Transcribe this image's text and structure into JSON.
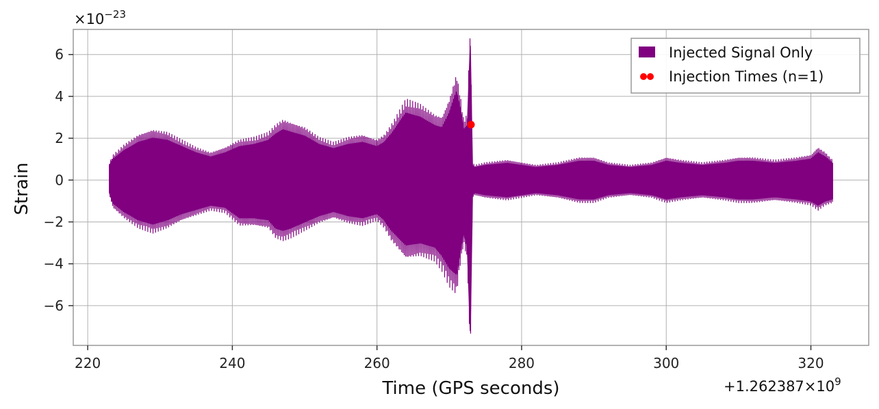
{
  "chart_data": {
    "type": "line",
    "title": "",
    "xlabel": "Time (GPS seconds)",
    "ylabel": "Strain",
    "xlim": [
      218,
      328
    ],
    "ylim": [
      -7.9,
      7.2
    ],
    "x_ticks": [
      220,
      240,
      260,
      280,
      300,
      320
    ],
    "x_tick_labels": [
      "220",
      "240",
      "260",
      "280",
      "300",
      "320"
    ],
    "y_ticks": [
      -6,
      -4,
      -2,
      0,
      2,
      4,
      6
    ],
    "y_tick_labels": [
      "−6",
      "−4",
      "−2",
      "0",
      "2",
      "4",
      "6"
    ],
    "x_offset_label": "+1.262387×10",
    "x_offset_exponent": "9",
    "y_scale_label": "×10",
    "y_scale_exponent": "−23",
    "grid": true,
    "legend_position": "top-right",
    "series": [
      {
        "name": "Injected Signal Only",
        "color": "#800080",
        "style": "oscillating strain envelope",
        "envelope": {
          "x": [
            223,
            223.5,
            225,
            227,
            229,
            231,
            233,
            235,
            237,
            239,
            241,
            243,
            245,
            246,
            247,
            248,
            250,
            252,
            254,
            256,
            258,
            260,
            261,
            262,
            264,
            266,
            268,
            269,
            270,
            271,
            271.5,
            272,
            272.5,
            272.9,
            273.2,
            273.5,
            275,
            278,
            280,
            282,
            285,
            288,
            290,
            292,
            295,
            298,
            300,
            302,
            305,
            308,
            310,
            312,
            315,
            318,
            320,
            321,
            322,
            323
          ],
          "upper": [
            0.7,
            1.0,
            1.4,
            1.8,
            2.0,
            1.9,
            1.6,
            1.3,
            1.1,
            1.3,
            1.6,
            1.7,
            1.9,
            2.2,
            2.4,
            2.3,
            2.1,
            1.7,
            1.5,
            1.7,
            1.8,
            1.6,
            1.8,
            2.2,
            3.2,
            3.0,
            2.6,
            2.5,
            3.2,
            4.2,
            3.4,
            2.4,
            2.6,
            6.4,
            0.7,
            0.6,
            0.7,
            0.8,
            0.7,
            0.6,
            0.7,
            0.9,
            0.9,
            0.7,
            0.6,
            0.7,
            0.9,
            0.8,
            0.7,
            0.8,
            0.9,
            0.9,
            0.8,
            0.9,
            1.0,
            1.3,
            1.1,
            0.8
          ],
          "lower": [
            -0.6,
            -1.1,
            -1.5,
            -1.9,
            -2.1,
            -1.9,
            -1.6,
            -1.4,
            -1.2,
            -1.3,
            -1.8,
            -1.8,
            -1.9,
            -2.3,
            -2.4,
            -2.3,
            -2.0,
            -1.7,
            -1.5,
            -1.7,
            -1.8,
            -1.6,
            -1.9,
            -2.4,
            -3.1,
            -3.0,
            -3.2,
            -3.6,
            -4.2,
            -4.5,
            -3.4,
            -2.5,
            -3.2,
            -7.2,
            -0.7,
            -0.6,
            -0.7,
            -0.8,
            -0.7,
            -0.6,
            -0.7,
            -0.9,
            -0.9,
            -0.7,
            -0.6,
            -0.7,
            -0.9,
            -0.8,
            -0.7,
            -0.8,
            -0.9,
            -0.9,
            -0.8,
            -0.9,
            -1.0,
            -1.2,
            -1.0,
            -0.9
          ]
        }
      },
      {
        "name": "Injection Times (n=1)",
        "color": "#ff0000",
        "type": "scatter",
        "points": [
          {
            "x": 273.0,
            "y": 2.65
          }
        ]
      }
    ]
  }
}
